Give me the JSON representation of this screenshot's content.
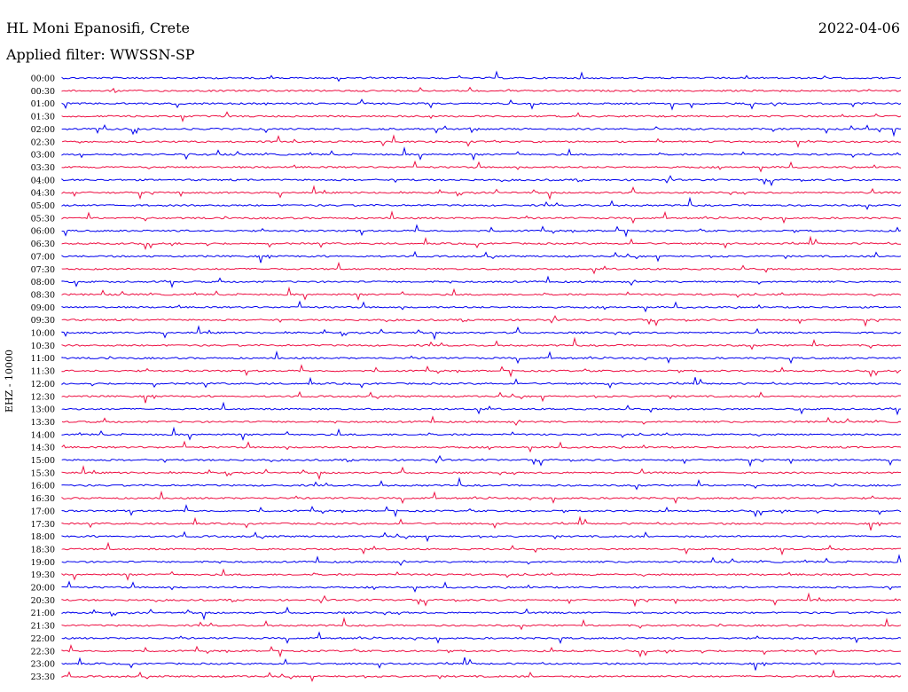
{
  "header": {
    "station": "HL Moni Epanosifi, Crete",
    "date": "2022-04-06",
    "filter": "Applied filter: WWSSN-SP"
  },
  "chart_data": {
    "type": "line",
    "title": "HL Moni Epanosifi, Crete",
    "ylabel": "EHZ - 10000",
    "trace_colors": [
      "#0000ee",
      "#ee1144"
    ],
    "rows": [
      "00:00",
      "00:30",
      "01:00",
      "01:30",
      "02:00",
      "02:30",
      "03:00",
      "03:30",
      "04:00",
      "04:30",
      "05:00",
      "05:30",
      "06:00",
      "06:30",
      "07:00",
      "07:30",
      "08:00",
      "08:30",
      "09:00",
      "09:30",
      "10:00",
      "10:30",
      "11:00",
      "11:30",
      "12:00",
      "12:30",
      "13:00",
      "13:30",
      "14:00",
      "14:30",
      "15:00",
      "15:30",
      "16:00",
      "16:30",
      "17:00",
      "17:30",
      "18:00",
      "18:30",
      "19:00",
      "19:30",
      "20:00",
      "20:30",
      "21:00",
      "21:30",
      "22:00",
      "22:30",
      "23:00",
      "23:30"
    ]
  }
}
